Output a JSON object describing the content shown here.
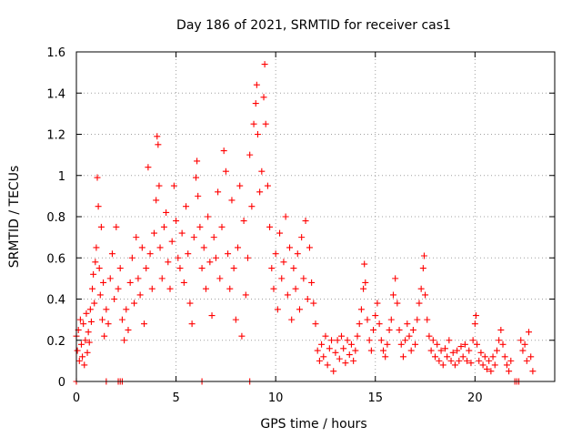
{
  "chart_data": {
    "type": "scatter",
    "title": "Day 186 of 2021, SRMTID for receiver cas1",
    "xlabel": "GPS time / hours",
    "ylabel": "SRMTID / TECUs",
    "xlim": [
      0,
      24
    ],
    "ylim": [
      0,
      1.6
    ],
    "x_ticks": [
      0,
      5,
      10,
      15,
      20
    ],
    "x_tick_labels": [
      "0",
      "5",
      "10",
      "15",
      "20"
    ],
    "y_ticks": [
      0,
      0.2,
      0.4,
      0.6,
      0.8,
      1.0,
      1.2,
      1.4,
      1.6
    ],
    "y_tick_labels": [
      "0",
      "0.2",
      "0.4",
      "0.6",
      "0.8",
      "1",
      "1.2",
      "1.4",
      "1.6"
    ],
    "grid": true,
    "marker": "+",
    "color": "#ff0000",
    "series": [
      {
        "name": "SRMTID",
        "points": [
          [
            0.0,
            0.22
          ],
          [
            0.05,
            0.15
          ],
          [
            0.1,
            0.25
          ],
          [
            0.15,
            0.1
          ],
          [
            0.2,
            0.3
          ],
          [
            0.25,
            0.18
          ],
          [
            0.3,
            0.12
          ],
          [
            0.35,
            0.28
          ],
          [
            0.4,
            0.08
          ],
          [
            0.45,
            0.2
          ],
          [
            0.5,
            0.33
          ],
          [
            0.55,
            0.14
          ],
          [
            0.6,
            0.24
          ],
          [
            0.65,
            0.19
          ],
          [
            0.7,
            0.35
          ],
          [
            0.75,
            0.29
          ],
          [
            0.8,
            0.45
          ],
          [
            0.85,
            0.52
          ],
          [
            0.9,
            0.38
          ],
          [
            0.95,
            0.58
          ],
          [
            1.0,
            0.65
          ],
          [
            1.05,
            0.99
          ],
          [
            1.1,
            0.85
          ],
          [
            1.15,
            0.55
          ],
          [
            1.2,
            0.42
          ],
          [
            1.25,
            0.75
          ],
          [
            1.3,
            0.3
          ],
          [
            1.35,
            0.48
          ],
          [
            1.4,
            0.22
          ],
          [
            1.5,
            0.35
          ],
          [
            1.6,
            0.28
          ],
          [
            1.7,
            0.5
          ],
          [
            1.8,
            0.62
          ],
          [
            1.9,
            0.4
          ],
          [
            2.0,
            0.75
          ],
          [
            2.1,
            0.45
          ],
          [
            2.2,
            0.55
          ],
          [
            2.3,
            0.3
          ],
          [
            2.4,
            0.2
          ],
          [
            2.5,
            0.35
          ],
          [
            2.6,
            0.25
          ],
          [
            2.7,
            0.48
          ],
          [
            2.8,
            0.6
          ],
          [
            2.9,
            0.38
          ],
          [
            3.0,
            0.7
          ],
          [
            3.1,
            0.5
          ],
          [
            3.2,
            0.42
          ],
          [
            3.3,
            0.65
          ],
          [
            3.4,
            0.28
          ],
          [
            3.5,
            0.55
          ],
          [
            3.6,
            1.04
          ],
          [
            3.7,
            0.62
          ],
          [
            3.8,
            0.45
          ],
          [
            3.9,
            0.72
          ],
          [
            4.0,
            0.88
          ],
          [
            4.05,
            1.19
          ],
          [
            4.1,
            1.15
          ],
          [
            4.15,
            0.95
          ],
          [
            4.2,
            0.65
          ],
          [
            4.3,
            0.5
          ],
          [
            4.4,
            0.75
          ],
          [
            4.5,
            0.82
          ],
          [
            4.6,
            0.58
          ],
          [
            4.7,
            0.45
          ],
          [
            4.8,
            0.68
          ],
          [
            4.9,
            0.95
          ],
          [
            5.0,
            0.78
          ],
          [
            5.1,
            0.6
          ],
          [
            5.2,
            0.55
          ],
          [
            5.3,
            0.72
          ],
          [
            5.4,
            0.48
          ],
          [
            5.5,
            0.85
          ],
          [
            5.6,
            0.62
          ],
          [
            5.7,
            0.38
          ],
          [
            5.8,
            0.28
          ],
          [
            5.9,
            0.7
          ],
          [
            6.0,
            0.99
          ],
          [
            6.05,
            1.07
          ],
          [
            6.1,
            0.9
          ],
          [
            6.2,
            0.75
          ],
          [
            6.3,
            0.55
          ],
          [
            6.4,
            0.65
          ],
          [
            6.5,
            0.45
          ],
          [
            6.6,
            0.8
          ],
          [
            6.7,
            0.58
          ],
          [
            6.8,
            0.32
          ],
          [
            6.9,
            0.7
          ],
          [
            7.0,
            0.6
          ],
          [
            7.1,
            0.92
          ],
          [
            7.2,
            0.5
          ],
          [
            7.3,
            0.75
          ],
          [
            7.4,
            1.12
          ],
          [
            7.5,
            1.02
          ],
          [
            7.6,
            0.62
          ],
          [
            7.7,
            0.45
          ],
          [
            7.8,
            0.88
          ],
          [
            7.9,
            0.55
          ],
          [
            8.0,
            0.3
          ],
          [
            8.1,
            0.65
          ],
          [
            8.2,
            0.95
          ],
          [
            8.3,
            0.22
          ],
          [
            8.4,
            0.78
          ],
          [
            8.5,
            0.42
          ],
          [
            8.6,
            0.6
          ],
          [
            8.7,
            1.1
          ],
          [
            8.8,
            0.85
          ],
          [
            8.9,
            1.25
          ],
          [
            9.0,
            1.35
          ],
          [
            9.05,
            1.44
          ],
          [
            9.1,
            1.2
          ],
          [
            9.2,
            0.92
          ],
          [
            9.3,
            1.02
          ],
          [
            9.4,
            1.38
          ],
          [
            9.45,
            1.54
          ],
          [
            9.5,
            1.25
          ],
          [
            9.6,
            0.95
          ],
          [
            9.7,
            0.75
          ],
          [
            9.8,
            0.55
          ],
          [
            9.9,
            0.45
          ],
          [
            10.0,
            0.62
          ],
          [
            10.1,
            0.35
          ],
          [
            10.2,
            0.72
          ],
          [
            10.3,
            0.5
          ],
          [
            10.4,
            0.58
          ],
          [
            10.5,
            0.8
          ],
          [
            10.6,
            0.42
          ],
          [
            10.7,
            0.65
          ],
          [
            10.8,
            0.3
          ],
          [
            10.9,
            0.55
          ],
          [
            11.0,
            0.45
          ],
          [
            11.1,
            0.62
          ],
          [
            11.2,
            0.35
          ],
          [
            11.3,
            0.7
          ],
          [
            11.4,
            0.5
          ],
          [
            11.5,
            0.78
          ],
          [
            11.6,
            0.4
          ],
          [
            11.7,
            0.65
          ],
          [
            11.8,
            0.48
          ],
          [
            11.9,
            0.38
          ],
          [
            12.0,
            0.28
          ],
          [
            12.1,
            0.15
          ],
          [
            12.2,
            0.1
          ],
          [
            12.3,
            0.18
          ],
          [
            12.4,
            0.12
          ],
          [
            12.5,
            0.22
          ],
          [
            12.6,
            0.08
          ],
          [
            12.7,
            0.16
          ],
          [
            12.8,
            0.2
          ],
          [
            12.9,
            0.05
          ],
          [
            13.0,
            0.14
          ],
          [
            13.1,
            0.2
          ],
          [
            13.2,
            0.11
          ],
          [
            13.3,
            0.22
          ],
          [
            13.4,
            0.16
          ],
          [
            13.5,
            0.09
          ],
          [
            13.6,
            0.2
          ],
          [
            13.7,
            0.13
          ],
          [
            13.8,
            0.18
          ],
          [
            13.9,
            0.1
          ],
          [
            14.0,
            0.15
          ],
          [
            14.1,
            0.22
          ],
          [
            14.2,
            0.28
          ],
          [
            14.3,
            0.35
          ],
          [
            14.4,
            0.45
          ],
          [
            14.45,
            0.57
          ],
          [
            14.5,
            0.48
          ],
          [
            14.6,
            0.3
          ],
          [
            14.7,
            0.2
          ],
          [
            14.8,
            0.15
          ],
          [
            14.9,
            0.25
          ],
          [
            15.0,
            0.32
          ],
          [
            15.1,
            0.38
          ],
          [
            15.2,
            0.28
          ],
          [
            15.3,
            0.2
          ],
          [
            15.4,
            0.15
          ],
          [
            15.5,
            0.12
          ],
          [
            15.6,
            0.18
          ],
          [
            15.7,
            0.25
          ],
          [
            15.8,
            0.3
          ],
          [
            15.9,
            0.42
          ],
          [
            16.0,
            0.5
          ],
          [
            16.1,
            0.38
          ],
          [
            16.2,
            0.25
          ],
          [
            16.3,
            0.18
          ],
          [
            16.4,
            0.12
          ],
          [
            16.5,
            0.2
          ],
          [
            16.6,
            0.28
          ],
          [
            16.7,
            0.22
          ],
          [
            16.8,
            0.15
          ],
          [
            16.9,
            0.25
          ],
          [
            17.0,
            0.18
          ],
          [
            17.1,
            0.3
          ],
          [
            17.2,
            0.38
          ],
          [
            17.3,
            0.45
          ],
          [
            17.4,
            0.55
          ],
          [
            17.45,
            0.61
          ],
          [
            17.5,
            0.42
          ],
          [
            17.6,
            0.3
          ],
          [
            17.7,
            0.22
          ],
          [
            17.8,
            0.15
          ],
          [
            17.9,
            0.2
          ],
          [
            18.0,
            0.12
          ],
          [
            18.1,
            0.18
          ],
          [
            18.2,
            0.1
          ],
          [
            18.3,
            0.15
          ],
          [
            18.4,
            0.08
          ],
          [
            18.5,
            0.16
          ],
          [
            18.6,
            0.12
          ],
          [
            18.7,
            0.2
          ],
          [
            18.8,
            0.1
          ],
          [
            18.9,
            0.14
          ],
          [
            19.0,
            0.08
          ],
          [
            19.1,
            0.15
          ],
          [
            19.2,
            0.1
          ],
          [
            19.3,
            0.17
          ],
          [
            19.4,
            0.12
          ],
          [
            19.5,
            0.18
          ],
          [
            19.6,
            0.1
          ],
          [
            19.7,
            0.15
          ],
          [
            19.8,
            0.09
          ],
          [
            19.9,
            0.2
          ],
          [
            20.0,
            0.28
          ],
          [
            20.05,
            0.32
          ],
          [
            20.1,
            0.18
          ],
          [
            20.2,
            0.1
          ],
          [
            20.3,
            0.14
          ],
          [
            20.4,
            0.08
          ],
          [
            20.5,
            0.12
          ],
          [
            20.6,
            0.06
          ],
          [
            20.7,
            0.1
          ],
          [
            20.8,
            0.05
          ],
          [
            20.9,
            0.12
          ],
          [
            21.0,
            0.08
          ],
          [
            21.1,
            0.15
          ],
          [
            21.2,
            0.2
          ],
          [
            21.3,
            0.25
          ],
          [
            21.4,
            0.18
          ],
          [
            21.5,
            0.12
          ],
          [
            21.6,
            0.08
          ],
          [
            21.7,
            0.05
          ],
          [
            21.8,
            0.1
          ],
          [
            22.0,
            0.0
          ],
          [
            22.1,
            0.0
          ],
          [
            22.2,
            0.0
          ],
          [
            22.3,
            0.2
          ],
          [
            22.4,
            0.15
          ],
          [
            22.5,
            0.18
          ],
          [
            22.6,
            0.1
          ],
          [
            22.7,
            0.24
          ],
          [
            22.8,
            0.12
          ],
          [
            22.9,
            0.05
          ],
          [
            1.5,
            0.0
          ],
          [
            2.1,
            0.0
          ],
          [
            2.2,
            0.0
          ],
          [
            2.3,
            0.0
          ],
          [
            6.3,
            0.0
          ],
          [
            8.7,
            0.0
          ],
          [
            0.0,
            0.0
          ]
        ]
      }
    ]
  }
}
